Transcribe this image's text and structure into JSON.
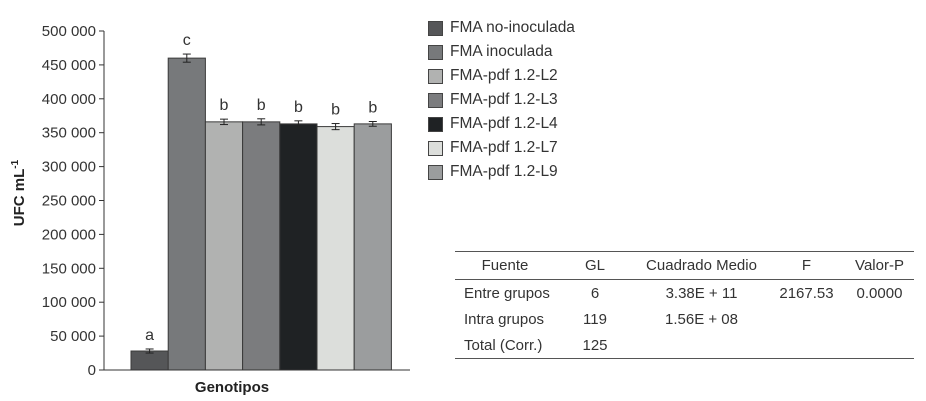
{
  "chart_data": {
    "type": "bar",
    "xlabel": "Genotipos",
    "ylabel": "UFC mL",
    "ylabel_superscript": "-1",
    "ylim": [
      0,
      500000
    ],
    "yticks": [
      0,
      50000,
      100000,
      150000,
      200000,
      250000,
      300000,
      350000,
      400000,
      450000,
      500000
    ],
    "ytick_labels": [
      "0",
      "50 000",
      "100 000",
      "150 000",
      "200 000",
      "250 000",
      "300 000",
      "350 000",
      "400 000",
      "450 000",
      "500 000"
    ],
    "series": [
      {
        "name": "FMA no-inoculada",
        "value": 28000,
        "error": 3000,
        "group": "a",
        "color": "#555658"
      },
      {
        "name": "FMA inoculada",
        "value": 460000,
        "error": 6000,
        "group": "c",
        "color": "#77797b"
      },
      {
        "name": "FMA-pdf 1.2-L2",
        "value": 366000,
        "error": 4000,
        "group": "b",
        "color": "#b1b2b1"
      },
      {
        "name": "FMA-pdf 1.2-L3",
        "value": 366000,
        "error": 4500,
        "group": "b",
        "color": "#7b7c7e"
      },
      {
        "name": "FMA-pdf 1.2-L4",
        "value": 363000,
        "error": 4500,
        "group": "b",
        "color": "#1f2224"
      },
      {
        "name": "FMA-pdf 1.2-L7",
        "value": 359000,
        "error": 4500,
        "group": "b",
        "color": "#dcdedb"
      },
      {
        "name": "FMA-pdf 1.2-L9",
        "value": 363000,
        "error": 3500,
        "group": "b",
        "color": "#9b9d9e"
      }
    ]
  },
  "anova_table": {
    "headers": [
      "Fuente",
      "GL",
      "Cuadrado Medio",
      "F",
      "Valor-P"
    ],
    "rows": [
      [
        "Entre grupos",
        "6",
        "3.38E + 11",
        "2167.53",
        "0.0000"
      ],
      [
        "Intra grupos",
        "119",
        "1.56E + 08",
        "",
        ""
      ],
      [
        "Total (Corr.)",
        "125",
        "",
        "",
        ""
      ]
    ]
  }
}
